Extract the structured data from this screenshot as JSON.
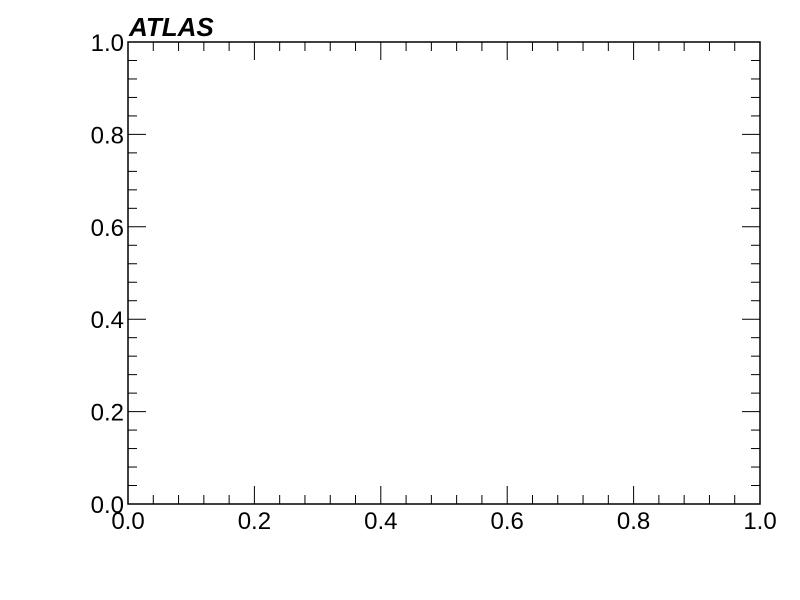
{
  "chart_data": {
    "type": "scatter",
    "title": "ATLAS",
    "xlabel": "",
    "ylabel": "",
    "xlim": [
      0.0,
      1.0
    ],
    "ylim": [
      0.0,
      1.0
    ],
    "x_ticks": [
      0.0,
      0.2,
      0.4,
      0.6,
      0.8,
      1.0
    ],
    "y_ticks": [
      0.0,
      0.2,
      0.4,
      0.6,
      0.8,
      1.0
    ],
    "x_tick_labels": [
      "0.0",
      "0.2",
      "0.4",
      "0.6",
      "0.8",
      "1.0"
    ],
    "y_tick_labels": [
      "0.0",
      "0.2",
      "0.4",
      "0.6",
      "0.8",
      "1.0"
    ],
    "minor_ticks_per_major": 4,
    "grid": false,
    "series": []
  }
}
